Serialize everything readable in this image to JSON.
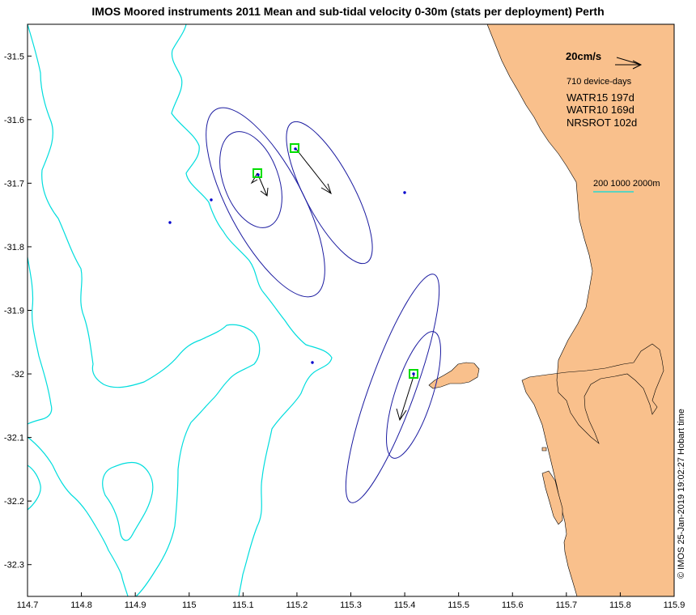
{
  "title": "IMOS Moored instruments 2011 Mean and sub-tidal velocity 0-30m (stats per deployment) Perth",
  "timestamp": "© IMOS 25-Jan-2019 19:02:27 Hobart time",
  "chart_data": {
    "type": "map",
    "xlim": [
      114.7,
      115.9
    ],
    "ylim": [
      -32.35,
      -31.45
    ],
    "x_ticks": [
      "114.7",
      "114.8",
      "114.9",
      "115",
      "115.1",
      "115.2",
      "115.3",
      "115.4",
      "115.5",
      "115.6",
      "115.7",
      "115.8",
      "115.9"
    ],
    "y_ticks": [
      "-31.5",
      "-31.6",
      "-31.7",
      "-31.8",
      "-31.9",
      "-32",
      "-32.1",
      "-32.2",
      "-32.3"
    ],
    "velocity_scale": {
      "label": "20cm/s",
      "value_cm_s": 20
    },
    "total_label": "710 device-days",
    "deployments": [
      {
        "name": "WATR15",
        "days": "197d",
        "lon": 115.195,
        "lat": -31.665
      },
      {
        "name": "WATR10",
        "days": "169d",
        "lon": 115.13,
        "lat": -31.69
      },
      {
        "name": "NRSROT",
        "days": "102d",
        "lon": 115.415,
        "lat": -32.0
      }
    ],
    "isobath_label": "200 1000 2000m",
    "colors": {
      "land": "#F9C08C",
      "ellipse": "#1B1BA0",
      "isobath": "#00DDDD",
      "site_marker": "#00DD00",
      "mooring_dot": "#0000CC"
    }
  }
}
